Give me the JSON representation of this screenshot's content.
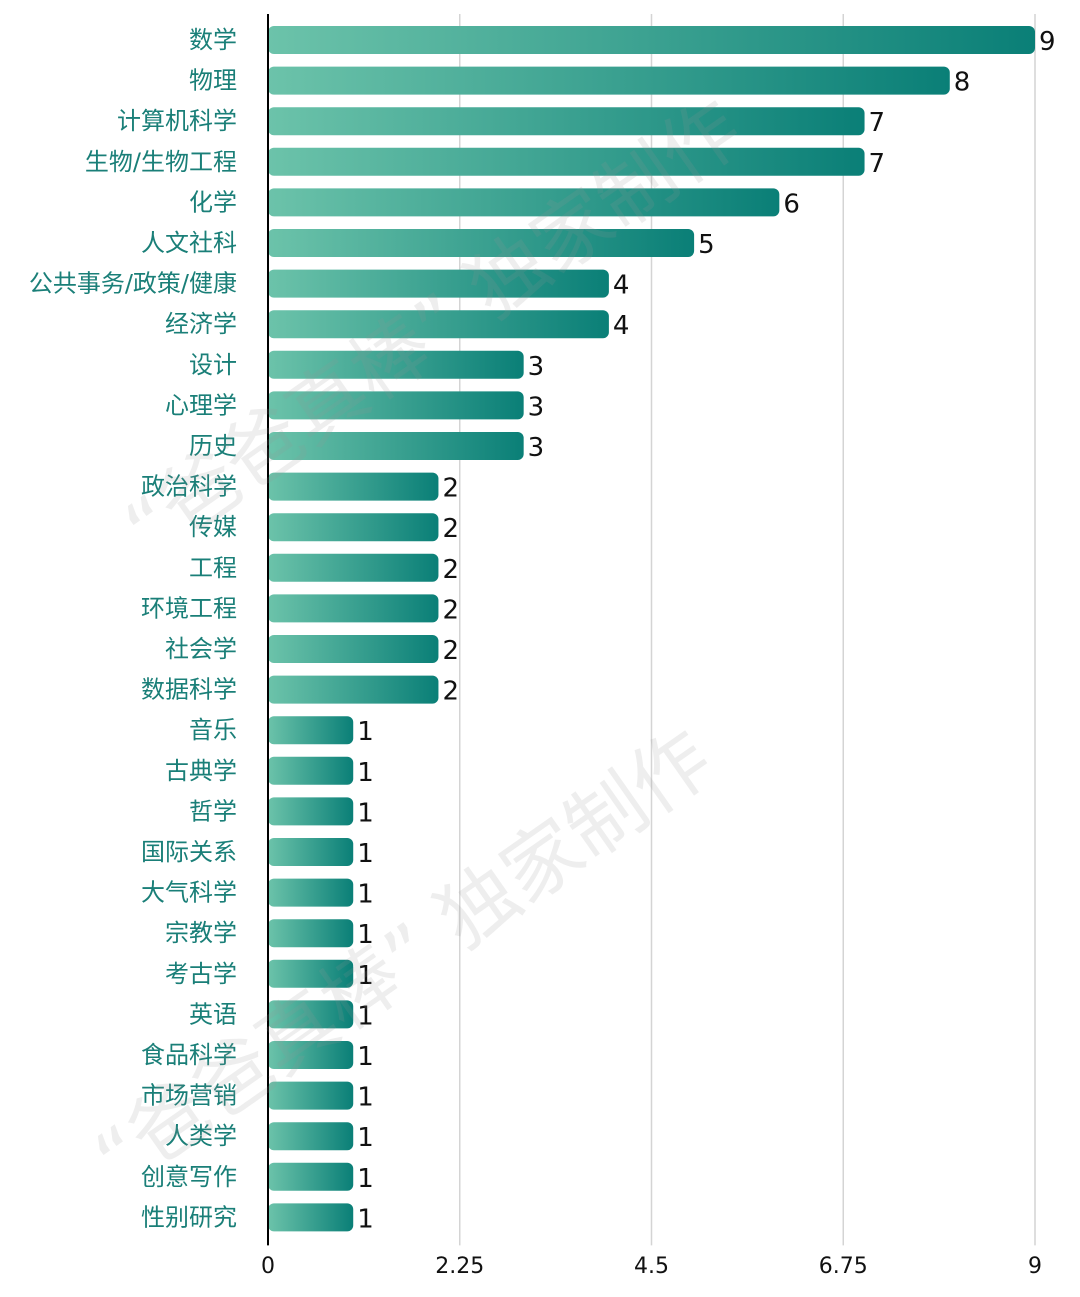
{
  "chart_data": {
    "type": "bar",
    "orientation": "horizontal",
    "categories": [
      "数学",
      "物理",
      "计算机科学",
      "生物/生物工程",
      "化学",
      "人文社科",
      "公共事务/政策/健康",
      "经济学",
      "设计",
      "心理学",
      "历史",
      "政治科学",
      "传媒",
      "工程",
      "环境工程",
      "社会学",
      "数据科学",
      "音乐",
      "古典学",
      "哲学",
      "国际关系",
      "大气科学",
      "宗教学",
      "考古学",
      "英语",
      "食品科学",
      "市场营销",
      "人类学",
      "创意写作",
      "性别研究"
    ],
    "values": [
      9,
      8,
      7,
      7,
      6,
      5,
      4,
      4,
      3,
      3,
      3,
      2,
      2,
      2,
      2,
      2,
      2,
      1,
      1,
      1,
      1,
      1,
      1,
      1,
      1,
      1,
      1,
      1,
      1,
      1
    ],
    "value_labels": [
      "9",
      "8",
      "7",
      "7",
      "6",
      "5",
      "4",
      "4",
      "3",
      "3",
      "3",
      "2",
      "2",
      "2",
      "2",
      "2",
      "2",
      "1",
      "1",
      "1",
      "1",
      "1",
      "1",
      "1",
      "1",
      "1",
      "1",
      "1",
      "1",
      "1"
    ],
    "xlim": [
      0,
      9
    ],
    "xticks": [
      "0",
      "2.25",
      "4.5",
      "6.75",
      "9"
    ],
    "grid": true,
    "title": "",
    "xlabel": "",
    "ylabel": "",
    "colors": {
      "bar_start": "#6cc3aa",
      "bar_end": "#0a7f77",
      "label": "#1a7f78"
    }
  },
  "watermark": [
    "“爸爸真棒” 独家制作",
    "“爸爸真棒” 独家制作"
  ]
}
